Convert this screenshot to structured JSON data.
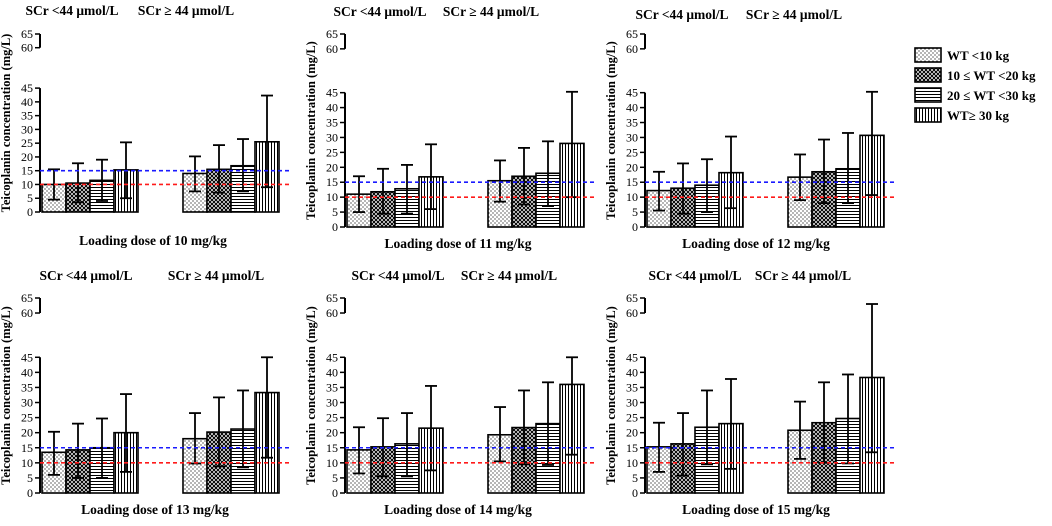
{
  "chart_data": {
    "type": "bar",
    "ylabel": "Teicoplanin concentration (mg/L)",
    "yticks": [
      0,
      5,
      10,
      15,
      20,
      25,
      30,
      35,
      40,
      45,
      60,
      65
    ],
    "ylim": [
      0,
      65
    ],
    "group_labels": [
      "SCr <44 μmol/L",
      "SCr ≥ 44 μmol/L"
    ],
    "reference_lines": [
      {
        "value": 15,
        "color": "#1a1aff",
        "style": "dashed"
      },
      {
        "value": 10,
        "color": "#ff1a1a",
        "style": "dashed"
      }
    ],
    "legend": {
      "position": "right",
      "entries": [
        {
          "label": "WT <10 kg",
          "pattern": "dots"
        },
        {
          "label": "10 ≤  WT <20 kg",
          "pattern": "cross"
        },
        {
          "label": "20 ≤  WT <30 kg",
          "pattern": "hlines"
        },
        {
          "label": "WT≥ 30 kg",
          "pattern": "vlines"
        }
      ]
    },
    "panels": [
      {
        "xlabel": "Loading dose of  10 mg/kg",
        "groups": [
          {
            "values": [
              10,
              10.5,
              11.5,
              15.3
            ],
            "lower": [
              4.5,
              3.5,
              4,
              5
            ],
            "upper": [
              15.5,
              17.7,
              19,
              25.3
            ]
          },
          {
            "values": [
              14,
              15.5,
              16.8,
              25.5
            ],
            "lower": [
              7.5,
              7,
              7.5,
              9
            ],
            "upper": [
              20.2,
              24.3,
              26.5,
              42.3
            ]
          }
        ]
      },
      {
        "xlabel": "Loading dose of  11 mg/kg",
        "groups": [
          {
            "values": [
              11,
              11.8,
              12.8,
              16.8
            ],
            "lower": [
              5,
              4.5,
              4.5,
              6
            ],
            "upper": [
              17,
              19.5,
              20.8,
              27.7
            ]
          },
          {
            "values": [
              15.5,
              17,
              18,
              28
            ],
            "lower": [
              8.5,
              7.5,
              7,
              10
            ],
            "upper": [
              22.3,
              26.5,
              28.7,
              45.3
            ]
          }
        ]
      },
      {
        "xlabel": "Loading dose of  12 mg/kg",
        "groups": [
          {
            "values": [
              12.2,
              13,
              14,
              18.2
            ],
            "lower": [
              5.5,
              4.5,
              5,
              6.3
            ],
            "upper": [
              18.5,
              21.3,
              22.7,
              30.3
            ]
          },
          {
            "values": [
              16.7,
              18.5,
              19.5,
              30.7
            ],
            "lower": [
              9,
              8,
              8,
              10.7
            ],
            "upper": [
              24.3,
              29.3,
              31.5,
              45.3
            ]
          }
        ]
      },
      {
        "xlabel": "Loading dose of  13 mg/kg",
        "groups": [
          {
            "values": [
              13.5,
              14.3,
              15,
              20
            ],
            "lower": [
              6,
              5,
              5,
              7
            ],
            "upper": [
              20.3,
              23,
              24.7,
              32.8
            ]
          },
          {
            "values": [
              18,
              20.2,
              21.2,
              33.3
            ],
            "lower": [
              9.8,
              8.8,
              8.5,
              11.7
            ],
            "upper": [
              26.5,
              31.7,
              34,
              45
            ]
          }
        ]
      },
      {
        "xlabel": "Loading dose of  14 mg/kg",
        "groups": [
          {
            "values": [
              14.3,
              15.3,
              16.3,
              21.5
            ],
            "lower": [
              6.5,
              5.5,
              5.5,
              7.5
            ],
            "upper": [
              21.8,
              24.8,
              26.5,
              35.5
            ]
          },
          {
            "values": [
              19.3,
              21.7,
              23,
              36
            ],
            "lower": [
              10.5,
              9.5,
              9.3,
              12.7
            ],
            "upper": [
              28.5,
              34,
              36.7,
              45
            ]
          }
        ]
      },
      {
        "xlabel": "Loading dose of  15 mg/kg",
        "groups": [
          {
            "values": [
              15.3,
              16.3,
              21.8,
              23
            ],
            "lower": [
              7,
              5.8,
              9.5,
              8
            ],
            "upper": [
              23.3,
              26.5,
              34,
              37.8
            ]
          },
          {
            "values": [
              20.8,
              23.3,
              24.7,
              38.3
            ],
            "lower": [
              11.3,
              10,
              9.8,
              13.5
            ],
            "upper": [
              30.3,
              36.7,
              39.3,
              63
            ]
          }
        ]
      }
    ]
  }
}
